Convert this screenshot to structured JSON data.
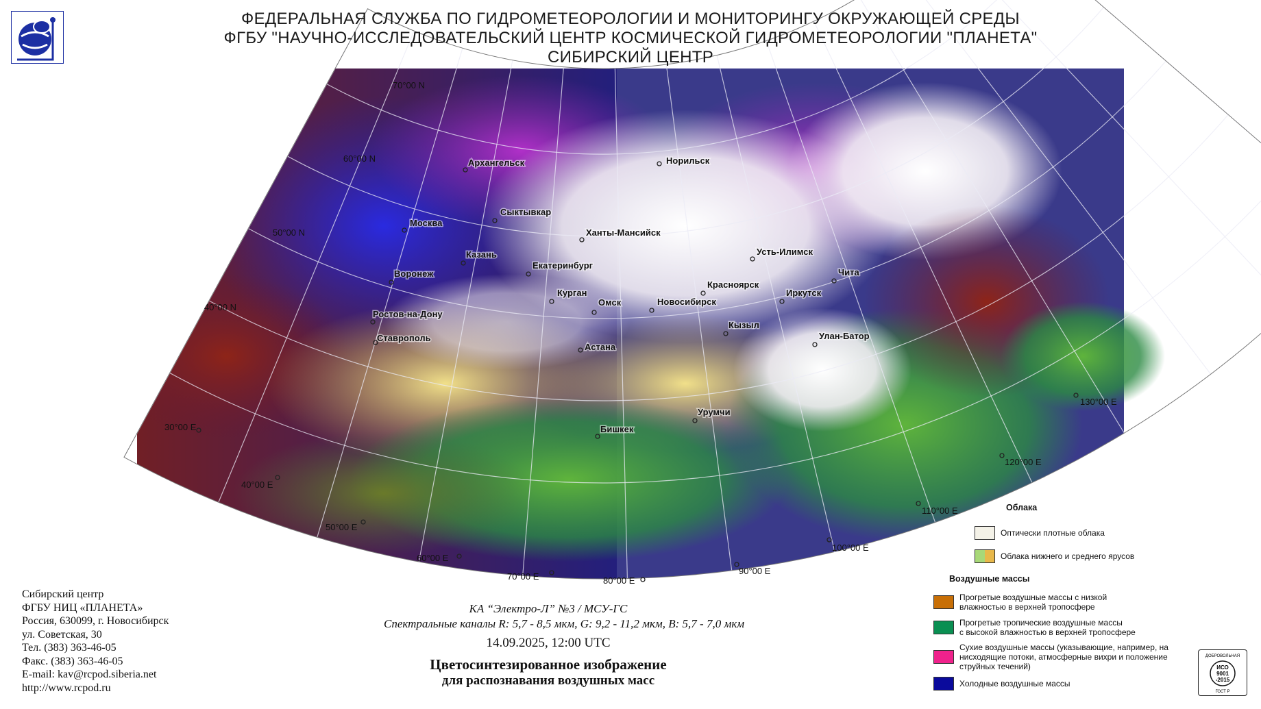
{
  "header": {
    "line1": "ФЕДЕРАЛЬНАЯ СЛУЖБА ПО ГИДРОМЕТЕОРОЛОГИИ И МОНИТОРИНГУ ОКРУЖАЮЩЕЙ СРЕДЫ",
    "line2": "ФГБУ \"НАУЧНО-ИССЛЕДОВАТЕЛЬСКИЙ ЦЕНТР КОСМИЧЕСКОЙ ГИДРОМЕТЕОРОЛОГИИ \"ПЛАНЕТА\"",
    "line3": "СИБИРСКИЙ ЦЕНТР"
  },
  "map": {
    "latitude_labels": [
      "70°00 N",
      "60°00 N",
      "50°00 N",
      "40°00 N"
    ],
    "longitude_labels": [
      "30°00 E",
      "40°00 E",
      "50°00 E",
      "60°00 E",
      "70°00 E",
      "80°00 E",
      "90°00 E",
      "100°00 E",
      "110°00 E",
      "120°00 E",
      "130°00 E"
    ],
    "cities": [
      "Архангельск",
      "Норильск",
      "Сыктывкар",
      "Москва",
      "Ханты-Мансийск",
      "Казань",
      "Усть-Илимск",
      "Воронеж",
      "Екатеринбург",
      "Красноярск",
      "Чита",
      "Курган",
      "Омск",
      "Новосибирск",
      "Иркутск",
      "Ростов-на-Дону",
      "Кызыл",
      "Ставрополь",
      "Астана",
      "Улан-Батор",
      "Урумчи",
      "Бишкек"
    ]
  },
  "contact": {
    "lines": [
      "Сибирский центр",
      "ФГБУ НИЦ «ПЛАНЕТА»",
      "Россия, 630099, г. Новосибирск",
      "ул. Советская, 30",
      "Тел. (383) 363-46-05",
      "Факс. (383) 363-46-05",
      "E-mail: kav@rcpod.siberia.net",
      "http://www.rcpod.ru"
    ]
  },
  "caption": {
    "satellite": "КА “Электро-Л” №3 / МСУ-ГС",
    "channels": "Спектральные каналы R: 5,7 - 8,5 мкм, G: 9,2 - 11,2 мкм, B: 5,7 - 7,0 мкм",
    "datetime": "14.09.2025, 12:00 UTC",
    "title_line1": "Цветосинтезированное изображение",
    "title_line2": "для распознавания воздушных масс"
  },
  "legend": {
    "clouds_heading": "Облака",
    "dense_clouds": "Оптически плотные облака",
    "low_mid_clouds": "Облака нижнего и среднего ярусов",
    "air_masses_heading": "Воздушные массы",
    "warm_low_humidity": [
      "Прогретые воздушные массы с низкой",
      "влажностью в верхней тропосфере"
    ],
    "tropical_high_humidity": [
      "Прогретые тропичеcкие воздушные массы",
      "с высокой влажностью в верхней тропосфере"
    ],
    "dry_air": [
      "Сухие воздушные массы (указывающие, например, на",
      "нисходящие потоки, атмосферные вихри и положение",
      "струйных течений)"
    ],
    "cold_air": "Холодные воздушные массы",
    "colors": {
      "dense_clouds": "#f4f2e8",
      "low_mid_a": "#a8d878",
      "low_mid_b": "#e8b84a",
      "warm": "#c86f06",
      "tropical": "#0a8f52",
      "dry": "#f0228c",
      "cold": "#0a0a9c"
    }
  },
  "iso_badge": {
    "top": "ДОБРОВОЛЬНАЯ",
    "line1": "ИСО",
    "line2": "9001",
    "line3": "-2015",
    "bottom": "ГОСТ Р"
  }
}
